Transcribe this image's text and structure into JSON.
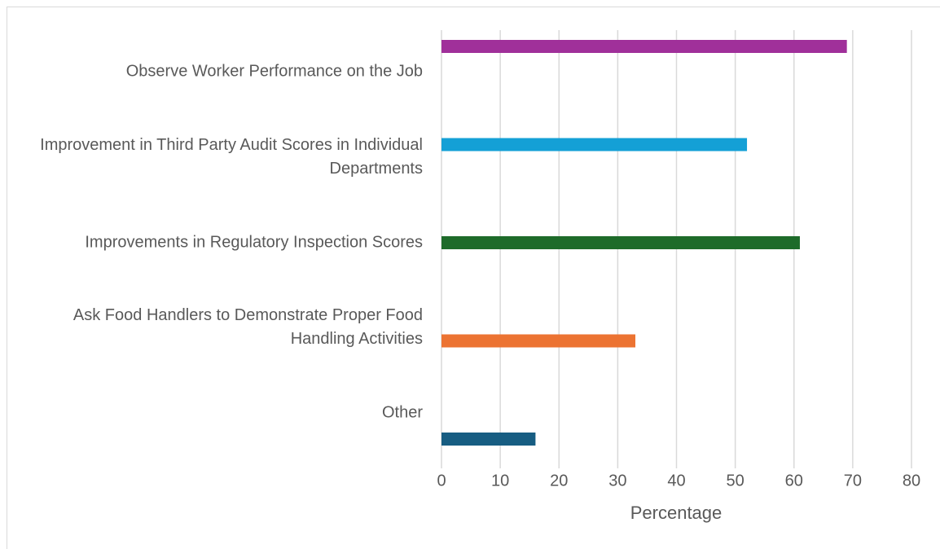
{
  "chart_data": {
    "type": "bar",
    "orientation": "horizontal",
    "x_label": "Percentage",
    "categories": [
      "Observe Worker Performance on the Job",
      "Improvement in Third Party Audit Scores in Individual Departments",
      "Improvements in Regulatory Inspection Scores",
      "Ask Food Handlers to Demonstrate Proper Food Handling Activities",
      "Other"
    ],
    "values": [
      69,
      52,
      61,
      33,
      16
    ],
    "colors": [
      "#a0309a",
      "#14a0d6",
      "#1e6b2a",
      "#ec7332",
      "#175d82"
    ],
    "xlim": [
      0,
      80
    ],
    "xticks": [
      0,
      10,
      20,
      30,
      40,
      50,
      60,
      70,
      80
    ],
    "grid": true
  }
}
